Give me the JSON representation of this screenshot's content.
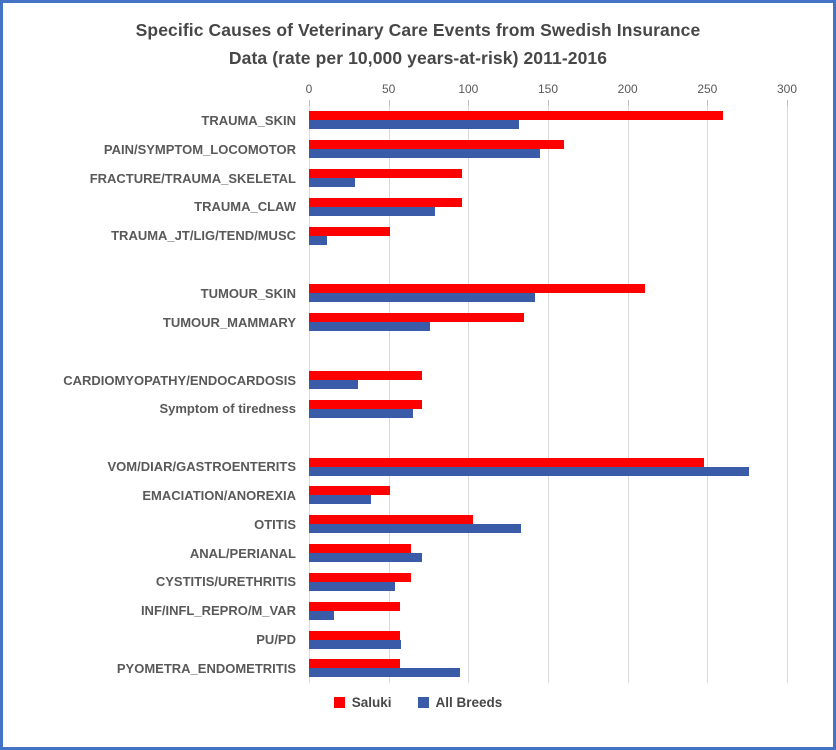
{
  "title": {
    "line1": "Specific Causes of Veterinary Care Events from Swedish Insurance",
    "line2": "Data (rate per 10,000 years-at-risk) 2011-2016"
  },
  "legend": {
    "items": [
      {
        "label": "Saluki",
        "color": "#FE0000"
      },
      {
        "label": "All Breeds",
        "color": "#3A5BA8"
      }
    ]
  },
  "colors": {
    "frame_border": "#4472C4",
    "gridline": "#D9D9D9",
    "title_text": "#474747",
    "label_text": "#595959"
  },
  "chart_data": {
    "type": "bar",
    "orientation": "horizontal",
    "title": "Specific Causes of Veterinary Care Events from Swedish Insurance Data (rate per 10,000 years-at-risk) 2011-2016",
    "xlabel": "rate per 10,000 years-at-risk",
    "ylabel": "",
    "xlim": [
      0,
      300
    ],
    "x_ticks": [
      0,
      50,
      100,
      150,
      200,
      250,
      300
    ],
    "grid": true,
    "legend_position": "bottom",
    "categories": [
      "TRAUMA_SKIN",
      "PAIN/SYMPTOM_LOCOMOTOR",
      "FRACTURE/TRAUMA_SKELETAL",
      "TRAUMA_CLAW",
      "TRAUMA_JT/LIG/TEND/MUSC",
      "TUMOUR_SKIN",
      "TUMOUR_MAMMARY",
      "CARDIOMYOPATHY/ENDOCARDOSIS",
      "Symptom of tiredness",
      "VOM/DIAR/GASTROENTERITS",
      "EMACIATION/ANOREXIA",
      "OTITIS",
      "ANAL/PERIANAL",
      "CYSTITIS/URETHRITIS",
      "INF/INFL_REPRO/M_VAR",
      "PU/PD",
      "PYOMETRA_ENDOMETRITIS"
    ],
    "gaps_after_indices": [
      4,
      6,
      8
    ],
    "series": [
      {
        "name": "Saluki",
        "color": "#FE0000",
        "values": [
          260,
          160,
          96,
          96,
          51,
          211,
          135,
          71,
          71,
          248,
          51,
          103,
          64,
          64,
          57,
          57,
          57
        ]
      },
      {
        "name": "All Breeds",
        "color": "#3A5BA8",
        "values": [
          132,
          145,
          29,
          79,
          11,
          142,
          76,
          31,
          65,
          276,
          39,
          133,
          71,
          54,
          16,
          58,
          95
        ]
      }
    ]
  }
}
